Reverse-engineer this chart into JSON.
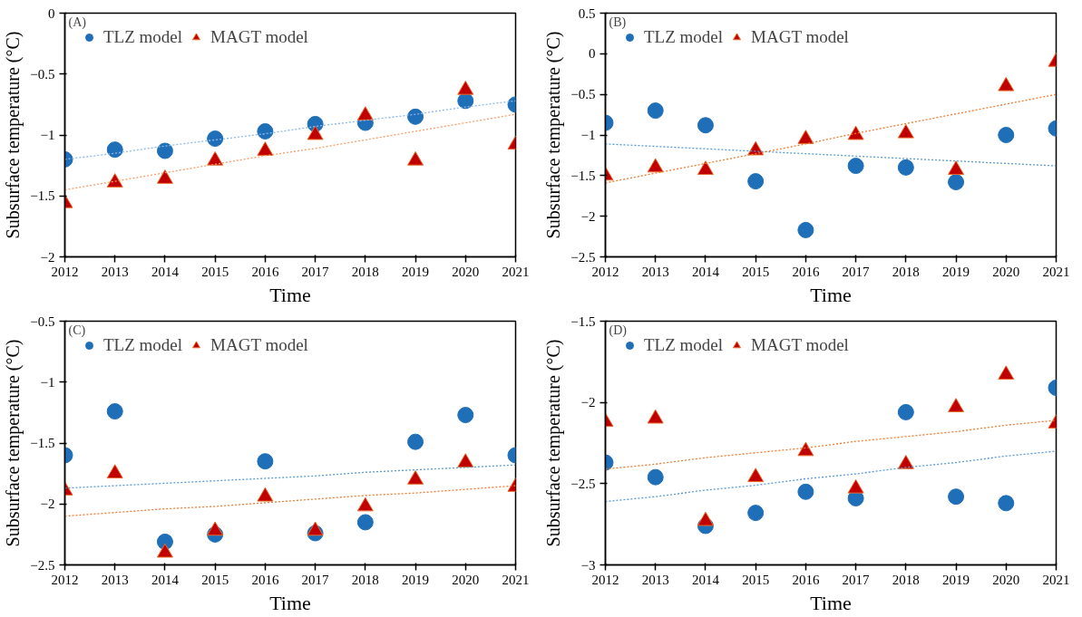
{
  "chart_data": [
    {
      "type": "scatter",
      "title": "(A)",
      "xlabel": "Time",
      "ylabel": "Subsurface temperature (°C)",
      "legend": "top left",
      "grid": false,
      "x": [
        2012,
        2013,
        2014,
        2015,
        2016,
        2017,
        2018,
        2019,
        2020,
        2021
      ],
      "xlim": [
        2012,
        2021
      ],
      "xticks": [
        2012,
        2013,
        2014,
        2015,
        2016,
        2017,
        2018,
        2019,
        2020,
        2021
      ],
      "ylim": [
        -2,
        0
      ],
      "yticks": [
        {
          "value": -2,
          "label": "−2"
        },
        {
          "value": -1.5,
          "label": "−1.5"
        },
        {
          "value": -1,
          "label": "−1"
        },
        {
          "value": -0.5,
          "label": "−0.5"
        },
        {
          "value": 0,
          "label": "0"
        }
      ],
      "series": [
        {
          "name": "TLZ model",
          "color": "#1f6fb8",
          "marker": "circle",
          "values": [
            -1.2,
            -1.12,
            -1.13,
            -1.03,
            -0.97,
            -0.91,
            -0.9,
            -0.85,
            -0.72,
            -0.75
          ]
        },
        {
          "name": "MAGT model",
          "color": "#c00000",
          "marker": "triangle",
          "values": [
            -1.56,
            -1.39,
            -1.36,
            -1.21,
            -1.13,
            -1.0,
            -0.84,
            -1.21,
            -0.63,
            -1.08
          ]
        },
        {
          "type": "line",
          "color": "#8fb8e6",
          "line_style": "dotted",
          "values": [
            -1.2,
            -1.15,
            -1.09,
            -1.04,
            -0.99,
            -0.93,
            -0.88,
            -0.83,
            -0.77,
            -0.72
          ]
        },
        {
          "type": "line",
          "color": "#f4a06a",
          "line_style": "dotted",
          "values": [
            -1.45,
            -1.38,
            -1.31,
            -1.24,
            -1.17,
            -1.11,
            -1.04,
            -0.97,
            -0.9,
            -0.83
          ]
        }
      ]
    },
    {
      "type": "scatter",
      "title": "(B)",
      "xlabel": "Time",
      "ylabel": "Subsurface temperature (°C)",
      "legend": "top left",
      "grid": false,
      "x": [
        2012,
        2013,
        2014,
        2015,
        2016,
        2017,
        2018,
        2019,
        2020,
        2021
      ],
      "xlim": [
        2012,
        2021
      ],
      "xticks": [
        2012,
        2013,
        2014,
        2015,
        2016,
        2017,
        2018,
        2019,
        2020,
        2021
      ],
      "ylim": [
        -2.5,
        0.5
      ],
      "yticks": [
        {
          "value": -2.5,
          "label": "−2.5"
        },
        {
          "value": -2,
          "label": "−2"
        },
        {
          "value": -1.5,
          "label": "−1.5"
        },
        {
          "value": -1,
          "label": "−1"
        },
        {
          "value": -0.5,
          "label": "−0.5"
        },
        {
          "value": 0,
          "label": "0"
        },
        {
          "value": 0.5,
          "label": "0.5"
        }
      ],
      "series": [
        {
          "name": "TLZ model",
          "color": "#1f6fb8",
          "marker": "circle",
          "values": [
            -0.85,
            -0.7,
            -0.88,
            -1.57,
            -2.17,
            -1.38,
            -1.4,
            -1.58,
            -1.0,
            -0.92
          ]
        },
        {
          "name": "MAGT model",
          "color": "#c00000",
          "marker": "triangle",
          "values": [
            -1.5,
            -1.4,
            -1.43,
            -1.19,
            -1.05,
            -1.0,
            -0.98,
            -1.43,
            -0.4,
            -0.1
          ]
        },
        {
          "type": "line",
          "color": "#5b9bd5",
          "line_style": "dotted",
          "values": [
            -1.11,
            -1.14,
            -1.17,
            -1.2,
            -1.23,
            -1.26,
            -1.29,
            -1.32,
            -1.35,
            -1.38
          ]
        },
        {
          "type": "line",
          "color": "#ed7d31",
          "line_style": "dotted",
          "values": [
            -1.59,
            -1.47,
            -1.35,
            -1.23,
            -1.11,
            -0.98,
            -0.86,
            -0.74,
            -0.62,
            -0.5
          ]
        }
      ]
    },
    {
      "type": "scatter",
      "title": "(C)",
      "xlabel": "Time",
      "ylabel": "Subsurface temperature (°C)",
      "legend": "top left",
      "grid": false,
      "x": [
        2012,
        2013,
        2014,
        2015,
        2016,
        2017,
        2018,
        2019,
        2020,
        2021
      ],
      "xlim": [
        2012,
        2021
      ],
      "xticks": [
        2012,
        2013,
        2014,
        2015,
        2016,
        2017,
        2018,
        2019,
        2020,
        2021
      ],
      "ylim": [
        -2.5,
        -0.5
      ],
      "yticks": [
        {
          "value": -2.5,
          "label": "−2.5"
        },
        {
          "value": -2,
          "label": "−2"
        },
        {
          "value": -1.5,
          "label": "−1.5"
        },
        {
          "value": -1,
          "label": "−1"
        },
        {
          "value": -0.5,
          "label": "−0.5"
        }
      ],
      "series": [
        {
          "name": "TLZ model",
          "color": "#1f6fb8",
          "marker": "circle",
          "values": [
            -1.6,
            -1.24,
            -2.31,
            -2.25,
            -1.65,
            -2.24,
            -2.15,
            -1.49,
            -1.27,
            -1.6
          ]
        },
        {
          "name": "MAGT model",
          "color": "#c00000",
          "marker": "triangle",
          "values": [
            -1.89,
            -1.75,
            -2.4,
            -2.22,
            -1.94,
            -2.22,
            -2.02,
            -1.8,
            -1.66,
            -1.86
          ]
        },
        {
          "type": "line",
          "color": "#5b9bd5",
          "line_style": "dotted",
          "values": [
            -1.87,
            -1.85,
            -1.83,
            -1.81,
            -1.79,
            -1.77,
            -1.74,
            -1.72,
            -1.7,
            -1.68
          ]
        },
        {
          "type": "line",
          "color": "#ed7d31",
          "line_style": "dotted",
          "values": [
            -2.1,
            -2.07,
            -2.04,
            -2.02,
            -1.99,
            -1.96,
            -1.93,
            -1.91,
            -1.88,
            -1.85
          ]
        }
      ]
    },
    {
      "type": "scatter",
      "title": "(D)",
      "xlabel": "Time",
      "ylabel": "Subsurface temperature (°C)",
      "legend": "top left",
      "grid": false,
      "x": [
        2012,
        2013,
        2014,
        2015,
        2016,
        2017,
        2018,
        2019,
        2020,
        2021
      ],
      "xlim": [
        2012,
        2021
      ],
      "xticks": [
        2012,
        2013,
        2014,
        2015,
        2016,
        2017,
        2018,
        2019,
        2020,
        2021
      ],
      "ylim": [
        -3,
        -1.5
      ],
      "yticks": [
        {
          "value": -3,
          "label": "−3"
        },
        {
          "value": -2.5,
          "label": "−2.5"
        },
        {
          "value": -2,
          "label": "−2"
        },
        {
          "value": -1.5,
          "label": "−1.5"
        }
      ],
      "series": [
        {
          "name": "TLZ model",
          "color": "#1f6fb8",
          "marker": "circle",
          "values": [
            -2.37,
            -2.46,
            -2.76,
            -2.68,
            -2.55,
            -2.59,
            -2.06,
            -2.58,
            -2.62,
            -1.91
          ]
        },
        {
          "name": "MAGT model",
          "color": "#c00000",
          "marker": "triangle",
          "values": [
            -2.12,
            -2.1,
            -2.73,
            -2.46,
            -2.3,
            -2.53,
            -2.38,
            -2.03,
            -1.83,
            -2.13
          ]
        },
        {
          "type": "line",
          "color": "#5b9bd5",
          "line_style": "dotted",
          "values": [
            -2.61,
            -2.58,
            -2.54,
            -2.51,
            -2.47,
            -2.44,
            -2.4,
            -2.37,
            -2.33,
            -2.3
          ]
        },
        {
          "type": "line",
          "color": "#ed7d31",
          "line_style": "dotted",
          "values": [
            -2.41,
            -2.38,
            -2.34,
            -2.31,
            -2.28,
            -2.24,
            -2.21,
            -2.18,
            -2.14,
            -2.11
          ]
        }
      ]
    }
  ]
}
